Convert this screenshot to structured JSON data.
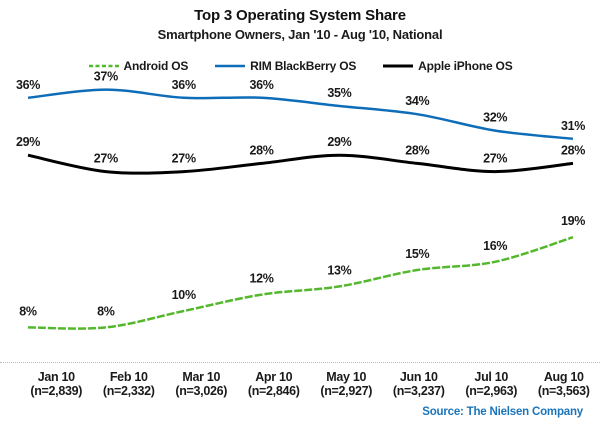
{
  "header": {
    "title": "Top 3 Operating System Share",
    "subtitle": "Smartphone Owners, Jan '10 - Aug '10, National"
  },
  "source": "Source: The Nielsen Company",
  "colors": {
    "android_green": "#53b82c",
    "blackberry_blue": "#0e6db8",
    "iphone_black": "#000000",
    "source_blue": "#1b75bb",
    "separator_gray": "#bdbdbd"
  },
  "chart_data": {
    "type": "line",
    "title": "Top 3 Operating System Share",
    "subtitle": "Smartphone Owners, Jan '10 - Aug '10, National",
    "categories": [
      "Jan 10",
      "Feb 10",
      "Mar 10",
      "Apr 10",
      "May 10",
      "Jun 10",
      "Jul 10",
      "Aug 10"
    ],
    "sample_sizes": [
      "(n=2,839)",
      "(n=2,332)",
      "(n=3,026)",
      "(n=2,846)",
      "(n=2,927)",
      "(n=3,237)",
      "(n=2,963)",
      "(n=3,563)"
    ],
    "unit": "%",
    "ylim": [
      0,
      45
    ],
    "grid": false,
    "legend_position": "top",
    "series": [
      {
        "name": "Android OS",
        "color": "#53b82c",
        "dashed": true,
        "values": [
          8,
          8,
          10,
          12,
          13,
          15,
          16,
          19
        ]
      },
      {
        "name": "RIM BlackBerry OS",
        "color": "#0e6db8",
        "dashed": false,
        "values": [
          36,
          37,
          36,
          36,
          35,
          34,
          32,
          31
        ]
      },
      {
        "name": "Apple iPhone OS",
        "color": "#000000",
        "dashed": false,
        "values": [
          29,
          27,
          27,
          28,
          29,
          28,
          27,
          28
        ]
      }
    ]
  }
}
